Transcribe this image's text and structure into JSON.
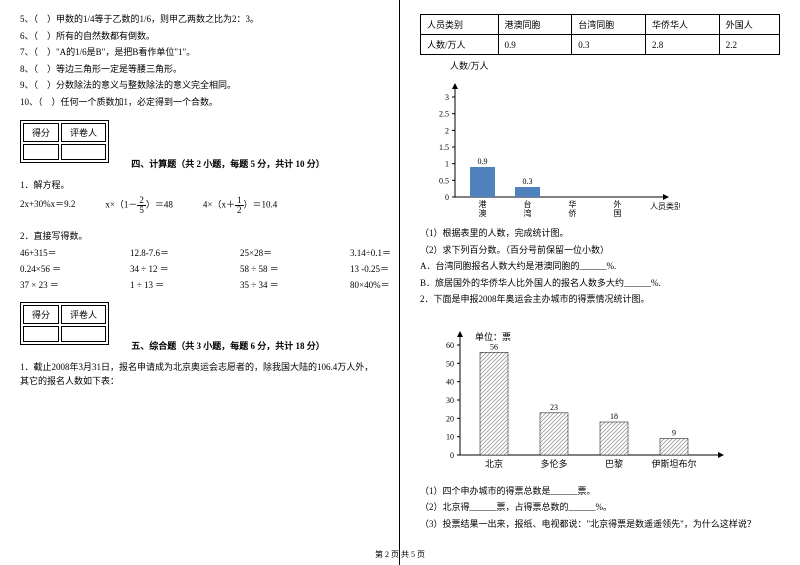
{
  "left": {
    "questions": [
      "5、（　）甲数的1/4等于乙数的1/6，则甲乙两数之比为2：3。",
      "6、（　）所有的自然数都有倒数。",
      "7、（　）\"A的1/6是B\"，是把B看作单位\"1\"。",
      "8、（　）等边三角形一定是等腰三角形。",
      "9、（　）分数除法的意义与整数除法的意义完全相同。",
      "10、（　）任何一个质数加1，必定得到一个合数。"
    ],
    "score_header": [
      "得分",
      "评卷人"
    ],
    "section4_title": "四、计算题（共 2 小题，每题 5 分，共计 10 分）",
    "q1_label": "1．解方程。",
    "eq1": "2x+30%x＝9.2",
    "eq2_pre": "x×（1－",
    "eq2_frac": {
      "n": "2",
      "d": "5"
    },
    "eq2_post": "）＝48",
    "eq3_pre": "4×（x＋",
    "eq3_frac": {
      "n": "1",
      "d": "2"
    },
    "eq3_post": "）＝10.4",
    "q2_label": "2．直接写得数。",
    "calc_rows": [
      [
        "46+315＝",
        "12.8-7.6＝",
        "25×28＝",
        "3.14÷0.1＝"
      ],
      [
        "0.24×56 ＝",
        "34 ÷ 12 ＝",
        "58 ÷ 58 ＝",
        "13 -0.25＝"
      ],
      [
        "37 × 23 ＝",
        "1 ÷ 13 ＝",
        "35 ÷ 34 ＝",
        "80×40%＝"
      ]
    ],
    "section5_title": "五、综合题（共 3 小题，每题 6 分，共计 18 分）",
    "q5_text": "1．截止2008年3月31日，报名申请成为北京奥运会志愿者的，除我国大陆的106.4万人外，其它的报名人数如下表："
  },
  "right": {
    "table": {
      "headers": [
        "人员类别",
        "港澳同胞",
        "台湾同胞",
        "华侨华人",
        "外国人"
      ],
      "row": [
        "人数/万人",
        "0.9",
        "0.3",
        "2.8",
        "2.2"
      ]
    },
    "chart1": {
      "ylabel": "人数/万人",
      "xlabel": "人员类别",
      "yticks": [
        "3",
        "2.5",
        "2",
        "1.5",
        "1",
        "0.5",
        "0"
      ],
      "categories": [
        "港澳同胞",
        "台湾同胞",
        "华侨华人",
        "外国人"
      ],
      "values": [
        0.9,
        0.3,
        0,
        0
      ],
      "labels": [
        "0.9",
        "0.3",
        "",
        ""
      ],
      "bar_color": "#4f81bd",
      "axis_color": "#000000",
      "ymax": 3
    },
    "sub_q": [
      "（1）根据表里的人数，完成统计图。",
      "（2）求下列百分数。（百分号前保留一位小数）",
      "A．台湾同胞报名人数大约是港澳同胞的______%.",
      "B．旅居国外的华侨华人比外国人的报名人数多大约______%.",
      "2．下面是申报2008年奥运会主办城市的得票情况统计图。"
    ],
    "chart2": {
      "ylabel": "单位：票",
      "yticks": [
        "60",
        "50",
        "40",
        "30",
        "20",
        "10",
        "0"
      ],
      "categories": [
        "北京",
        "多伦多",
        "巴黎",
        "伊斯坦布尔"
      ],
      "values": [
        56,
        23,
        18,
        9
      ],
      "labels": [
        "56",
        "23",
        "18",
        "9"
      ],
      "bar_fill": "#cccccc",
      "bar_hatch": true,
      "axis_color": "#000000",
      "ymax": 60
    },
    "sub_q2": [
      "（1）四个申办城市的得票总数是______票。",
      "（2）北京得______票，占得票总数的______%。",
      "（3）投票结果一出来，报纸、电视都说：\"北京得票是数遥遥领先\"，为什么这样说？"
    ]
  },
  "footer": "第 2 页 共 5 页"
}
